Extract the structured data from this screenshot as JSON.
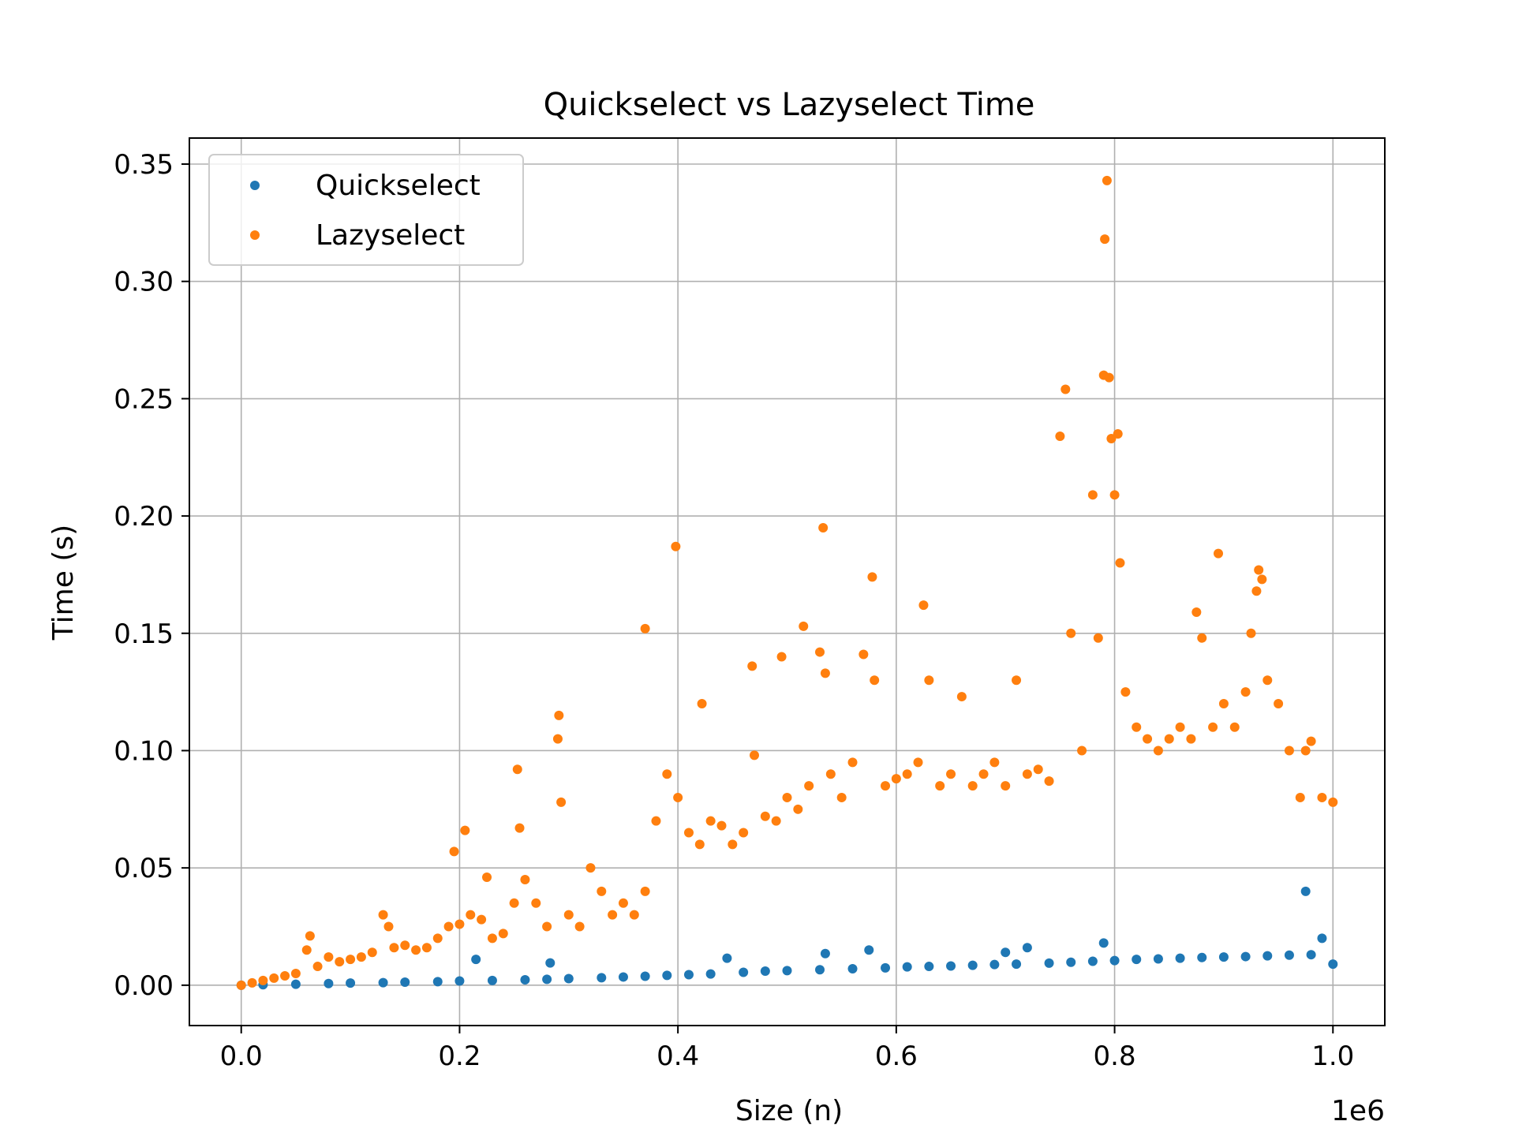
{
  "chart_data": {
    "type": "scatter",
    "title": "Quickselect vs Lazyselect Time",
    "xlabel": "Size (n)",
    "ylabel": "Time (s)",
    "x_offset_label": "1e6",
    "xlim": [
      -47500,
      1047500
    ],
    "ylim": [
      -0.0172,
      0.3611
    ],
    "x_ticks": [
      0,
      200000,
      400000,
      600000,
      800000,
      1000000
    ],
    "x_tick_labels": [
      "0.0",
      "0.2",
      "0.4",
      "0.6",
      "0.8",
      "1.0"
    ],
    "y_ticks": [
      0.0,
      0.05,
      0.1,
      0.15,
      0.2,
      0.25,
      0.3,
      0.35
    ],
    "y_tick_labels": [
      "0.00",
      "0.05",
      "0.10",
      "0.15",
      "0.20",
      "0.25",
      "0.30",
      "0.35"
    ],
    "grid": true,
    "legend_position": "top-left",
    "colors": {
      "quickselect": "#1f77b4",
      "lazyselect": "#ff7f0e"
    },
    "series": [
      {
        "name": "Quickselect",
        "points": [
          [
            0,
            0.0
          ],
          [
            20000,
            0.0002
          ],
          [
            50000,
            0.0004
          ],
          [
            80000,
            0.0007
          ],
          [
            100000,
            0.0009
          ],
          [
            130000,
            0.0011
          ],
          [
            150000,
            0.0013
          ],
          [
            180000,
            0.0015
          ],
          [
            200000,
            0.0018
          ],
          [
            215000,
            0.011
          ],
          [
            230000,
            0.002
          ],
          [
            260000,
            0.0023
          ],
          [
            280000,
            0.0025
          ],
          [
            283000,
            0.0095
          ],
          [
            300000,
            0.0028
          ],
          [
            330000,
            0.0032
          ],
          [
            350000,
            0.0035
          ],
          [
            370000,
            0.0038
          ],
          [
            390000,
            0.0042
          ],
          [
            410000,
            0.0045
          ],
          [
            430000,
            0.0048
          ],
          [
            445000,
            0.0115
          ],
          [
            460000,
            0.0055
          ],
          [
            480000,
            0.006
          ],
          [
            500000,
            0.0062
          ],
          [
            530000,
            0.0066
          ],
          [
            535000,
            0.0135
          ],
          [
            560000,
            0.007
          ],
          [
            575000,
            0.015
          ],
          [
            590000,
            0.0074
          ],
          [
            610000,
            0.0078
          ],
          [
            630000,
            0.008
          ],
          [
            650000,
            0.0082
          ],
          [
            670000,
            0.0085
          ],
          [
            690000,
            0.0088
          ],
          [
            700000,
            0.014
          ],
          [
            710000,
            0.009
          ],
          [
            720000,
            0.016
          ],
          [
            740000,
            0.0094
          ],
          [
            760000,
            0.0098
          ],
          [
            780000,
            0.0102
          ],
          [
            790000,
            0.018
          ],
          [
            800000,
            0.0105
          ],
          [
            820000,
            0.011
          ],
          [
            840000,
            0.0112
          ],
          [
            860000,
            0.0115
          ],
          [
            880000,
            0.0118
          ],
          [
            900000,
            0.012
          ],
          [
            920000,
            0.0122
          ],
          [
            940000,
            0.0125
          ],
          [
            960000,
            0.0128
          ],
          [
            975000,
            0.04
          ],
          [
            980000,
            0.013
          ],
          [
            990000,
            0.02
          ],
          [
            1000000,
            0.009
          ]
        ]
      },
      {
        "name": "Lazyselect",
        "points": [
          [
            0,
            0.0
          ],
          [
            10000,
            0.001
          ],
          [
            20000,
            0.002
          ],
          [
            30000,
            0.003
          ],
          [
            40000,
            0.004
          ],
          [
            50000,
            0.005
          ],
          [
            60000,
            0.015
          ],
          [
            63000,
            0.021
          ],
          [
            70000,
            0.008
          ],
          [
            80000,
            0.012
          ],
          [
            90000,
            0.01
          ],
          [
            100000,
            0.011
          ],
          [
            110000,
            0.012
          ],
          [
            120000,
            0.014
          ],
          [
            130000,
            0.03
          ],
          [
            135000,
            0.025
          ],
          [
            140000,
            0.016
          ],
          [
            150000,
            0.017
          ],
          [
            160000,
            0.015
          ],
          [
            170000,
            0.016
          ],
          [
            180000,
            0.02
          ],
          [
            190000,
            0.025
          ],
          [
            195000,
            0.057
          ],
          [
            200000,
            0.026
          ],
          [
            205000,
            0.066
          ],
          [
            210000,
            0.03
          ],
          [
            220000,
            0.028
          ],
          [
            225000,
            0.046
          ],
          [
            230000,
            0.02
          ],
          [
            240000,
            0.022
          ],
          [
            250000,
            0.035
          ],
          [
            253000,
            0.092
          ],
          [
            255000,
            0.067
          ],
          [
            260000,
            0.045
          ],
          [
            270000,
            0.035
          ],
          [
            280000,
            0.025
          ],
          [
            290000,
            0.105
          ],
          [
            291000,
            0.115
          ],
          [
            293000,
            0.078
          ],
          [
            300000,
            0.03
          ],
          [
            310000,
            0.025
          ],
          [
            320000,
            0.05
          ],
          [
            330000,
            0.04
          ],
          [
            340000,
            0.03
          ],
          [
            350000,
            0.035
          ],
          [
            360000,
            0.03
          ],
          [
            370000,
            0.04
          ],
          [
            370000,
            0.152
          ],
          [
            380000,
            0.07
          ],
          [
            390000,
            0.09
          ],
          [
            398000,
            0.187
          ],
          [
            400000,
            0.08
          ],
          [
            410000,
            0.065
          ],
          [
            420000,
            0.06
          ],
          [
            422000,
            0.12
          ],
          [
            430000,
            0.07
          ],
          [
            440000,
            0.068
          ],
          [
            450000,
            0.06
          ],
          [
            460000,
            0.065
          ],
          [
            468000,
            0.136
          ],
          [
            470000,
            0.098
          ],
          [
            480000,
            0.072
          ],
          [
            490000,
            0.07
          ],
          [
            495000,
            0.14
          ],
          [
            500000,
            0.08
          ],
          [
            510000,
            0.075
          ],
          [
            515000,
            0.153
          ],
          [
            520000,
            0.085
          ],
          [
            530000,
            0.142
          ],
          [
            533000,
            0.195
          ],
          [
            535000,
            0.133
          ],
          [
            540000,
            0.09
          ],
          [
            550000,
            0.08
          ],
          [
            560000,
            0.095
          ],
          [
            570000,
            0.141
          ],
          [
            578000,
            0.174
          ],
          [
            580000,
            0.13
          ],
          [
            590000,
            0.085
          ],
          [
            600000,
            0.088
          ],
          [
            610000,
            0.09
          ],
          [
            620000,
            0.095
          ],
          [
            625000,
            0.162
          ],
          [
            630000,
            0.13
          ],
          [
            640000,
            0.085
          ],
          [
            650000,
            0.09
          ],
          [
            660000,
            0.123
          ],
          [
            670000,
            0.085
          ],
          [
            680000,
            0.09
          ],
          [
            690000,
            0.095
          ],
          [
            700000,
            0.085
          ],
          [
            710000,
            0.13
          ],
          [
            720000,
            0.09
          ],
          [
            730000,
            0.092
          ],
          [
            740000,
            0.087
          ],
          [
            750000,
            0.234
          ],
          [
            755000,
            0.254
          ],
          [
            760000,
            0.15
          ],
          [
            770000,
            0.1
          ],
          [
            780000,
            0.209
          ],
          [
            785000,
            0.148
          ],
          [
            790000,
            0.26
          ],
          [
            791000,
            0.318
          ],
          [
            793000,
            0.343
          ],
          [
            795000,
            0.259
          ],
          [
            797000,
            0.233
          ],
          [
            800000,
            0.209
          ],
          [
            803000,
            0.235
          ],
          [
            805000,
            0.18
          ],
          [
            810000,
            0.125
          ],
          [
            820000,
            0.11
          ],
          [
            830000,
            0.105
          ],
          [
            840000,
            0.1
          ],
          [
            850000,
            0.105
          ],
          [
            860000,
            0.11
          ],
          [
            870000,
            0.105
          ],
          [
            875000,
            0.159
          ],
          [
            880000,
            0.148
          ],
          [
            890000,
            0.11
          ],
          [
            895000,
            0.184
          ],
          [
            900000,
            0.12
          ],
          [
            910000,
            0.11
          ],
          [
            920000,
            0.125
          ],
          [
            925000,
            0.15
          ],
          [
            930000,
            0.168
          ],
          [
            932000,
            0.177
          ],
          [
            935000,
            0.173
          ],
          [
            940000,
            0.13
          ],
          [
            950000,
            0.12
          ],
          [
            960000,
            0.1
          ],
          [
            970000,
            0.08
          ],
          [
            975000,
            0.1
          ],
          [
            980000,
            0.104
          ],
          [
            990000,
            0.08
          ],
          [
            1000000,
            0.078
          ]
        ]
      }
    ]
  }
}
